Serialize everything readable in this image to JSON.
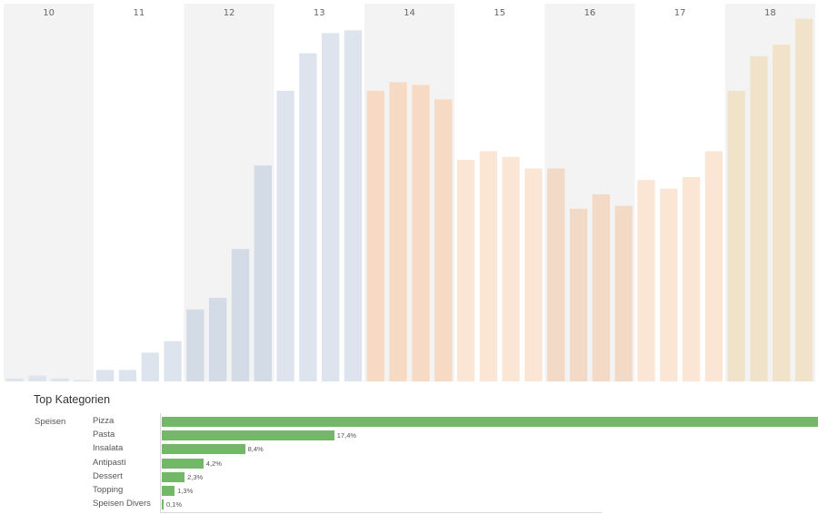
{
  "chart_data": [
    {
      "type": "bar",
      "hours": [
        "10",
        "11",
        "12",
        "13",
        "14",
        "15",
        "16",
        "17",
        "18"
      ],
      "hour_shading": [
        "#f3f3f3",
        "#ffffff",
        "#f3f3f3",
        "#ffffff",
        "#f3f3f3",
        "#ffffff",
        "#f3f3f3",
        "#ffffff",
        "#f3f3f3"
      ],
      "bars_per_hour": 4,
      "values": [
        1,
        2,
        1,
        0,
        4,
        4,
        10,
        14,
        25,
        29,
        46,
        75,
        101,
        114,
        121,
        122,
        101,
        104,
        103,
        98,
        77,
        80,
        78,
        74,
        74,
        60,
        65,
        61,
        70,
        67,
        71,
        80,
        101,
        113,
        117,
        126
      ],
      "colors": {
        "10": "#dde4ee",
        "11": "#dde4ee",
        "12": "#d3dbe6",
        "13": "#dde4ee",
        "14": "#f6dac4",
        "15": "#fbe6d5",
        "16": "#f2dac6",
        "17": "#fbe6d5",
        "18": "#f1e3c9"
      },
      "ylim": [
        0,
        130
      ]
    },
    {
      "type": "bar",
      "orientation": "horizontal",
      "title": "Top Kategorien",
      "group": "Speisen",
      "categories": [
        "Pizza",
        "Pasta",
        "Insalata",
        "Antipasti",
        "Dessert",
        "Topping",
        "Speisen Divers"
      ],
      "values": [
        66.2,
        17.4,
        8.4,
        4.2,
        2.3,
        1.3,
        0.1
      ],
      "labels": [
        "",
        "17,4%",
        "8,4%",
        "4,2%",
        "2,3%",
        "1,3%",
        "0,1%"
      ],
      "bar_color": "#72b868"
    }
  ]
}
